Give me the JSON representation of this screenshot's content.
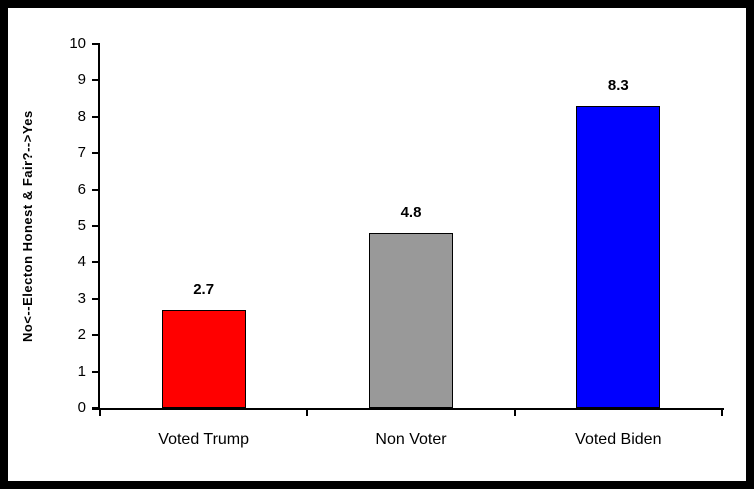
{
  "chart_data": {
    "type": "bar",
    "title": "",
    "categories": [
      "Voted Trump",
      "Non Voter",
      "Voted Biden"
    ],
    "values": [
      2.7,
      4.8,
      8.3
    ],
    "value_labels": [
      "2.7",
      "4.8",
      "8.3"
    ],
    "bar_colors": [
      "#ff0000",
      "#999999",
      "#0000ff"
    ],
    "xlabel": "",
    "ylabel": "No<--Electon Honest & Fair?-->Yes",
    "ylim": [
      0,
      10
    ],
    "ytick_step": 1,
    "ytick_labels": [
      "0",
      "1",
      "2",
      "3",
      "4",
      "5",
      "6",
      "7",
      "8",
      "9",
      "10"
    ],
    "grid": false,
    "legend": "none",
    "frame_color": "#000000",
    "plot_background": "#ffffff",
    "bar_border_color": "#000000"
  }
}
